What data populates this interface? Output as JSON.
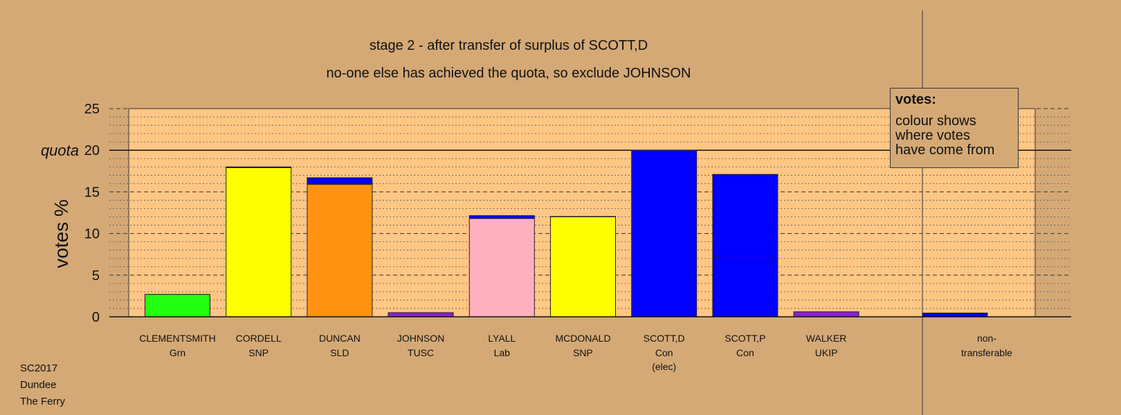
{
  "chart_data": {
    "type": "bar",
    "stacked": true,
    "title": "stage 2 - after transfer of surplus of SCOTT,D",
    "subtitle": "no-one else has achieved the quota, so exclude JOHNSON",
    "ylabel": "votes %",
    "quota_label": "quota",
    "quota": 20,
    "ylim": [
      0,
      25
    ],
    "yticks": [
      "0",
      "5",
      "10",
      "15",
      "20",
      "25"
    ],
    "categories": [
      {
        "name": "CLEMENTSMITH",
        "party": "Grn",
        "note": ""
      },
      {
        "name": "CORDELL",
        "party": "SNP",
        "note": ""
      },
      {
        "name": "DUNCAN",
        "party": "SLD",
        "note": ""
      },
      {
        "name": "JOHNSON",
        "party": "TUSC",
        "note": ""
      },
      {
        "name": "LYALL",
        "party": "Lab",
        "note": ""
      },
      {
        "name": "MCDONALD",
        "party": "SNP",
        "note": ""
      },
      {
        "name": "SCOTT,D",
        "party": "Con",
        "note": "(elec)"
      },
      {
        "name": "SCOTT,P",
        "party": "Con",
        "note": ""
      },
      {
        "name": "WALKER",
        "party": "UKIP",
        "note": ""
      }
    ],
    "stacks": [
      [
        {
          "value": 2.7,
          "color": "#22ff11"
        }
      ],
      [
        {
          "value": 17.9,
          "color": "#ffff00"
        },
        {
          "value": 0.1,
          "color": "#0000ff"
        }
      ],
      [
        {
          "value": 15.9,
          "color": "#ff9311"
        },
        {
          "value": 0.8,
          "color": "#0000ff"
        }
      ],
      [
        {
          "value": 0.5,
          "color": "#8822cc"
        }
      ],
      [
        {
          "value": 11.8,
          "color": "#ffb0c0"
        },
        {
          "value": 0.35,
          "color": "#0000ff"
        }
      ],
      [
        {
          "value": 12.0,
          "color": "#ffff00"
        },
        {
          "value": 0.05,
          "color": "#0000ff"
        }
      ],
      [
        {
          "value": 20.0,
          "color": "#0000ff"
        }
      ],
      [
        {
          "value": 7.1,
          "color": "#0000ff"
        },
        {
          "value": 10.0,
          "color": "#0000ff"
        }
      ],
      [
        {
          "value": 0.6,
          "color": "#8822cc"
        }
      ]
    ],
    "nontransferable": {
      "label_line1": "non-",
      "label_line2": "transferable",
      "value": 0.45,
      "color": "#0000ff"
    },
    "grid": true,
    "plot_background": "#ffc684",
    "legend": {
      "title": "votes:",
      "lines": [
        "colour shows",
        "where votes",
        "have come from"
      ],
      "placement": "top-right"
    }
  },
  "footer": {
    "line1": "SC2017",
    "line2": "Dundee",
    "line3": "The Ferry"
  }
}
